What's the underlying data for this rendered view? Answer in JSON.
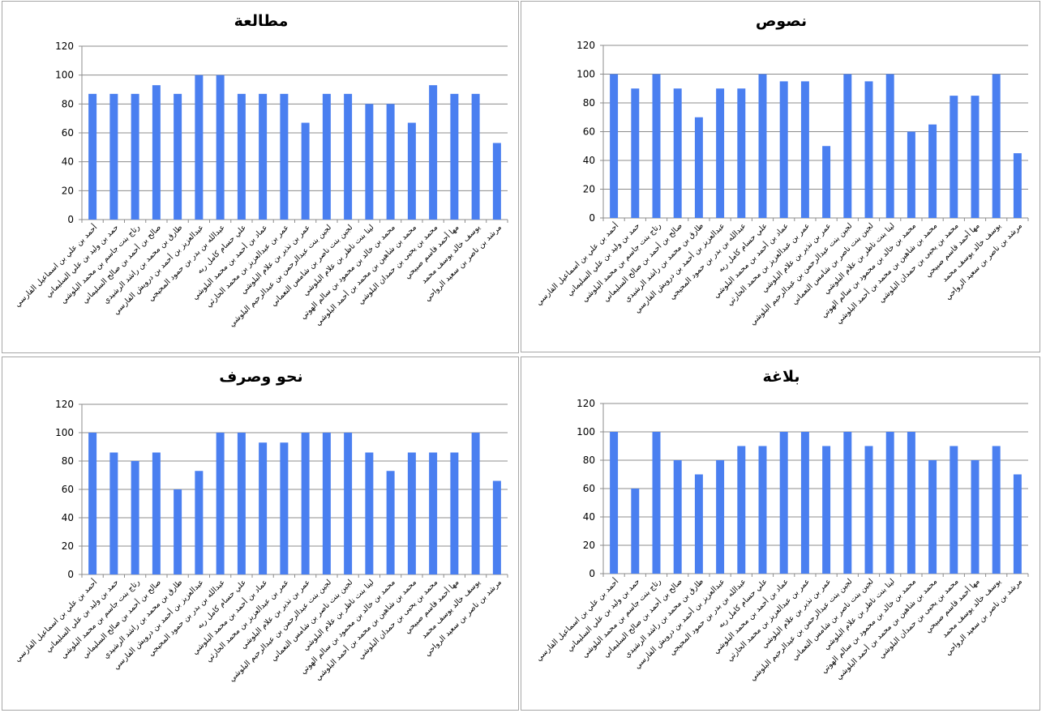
{
  "colors": {
    "bar": "#4a7ff0",
    "grid": "#8c8c8c",
    "axis": "#8c8c8c"
  },
  "chart_data": [
    {
      "type": "bar",
      "title": "مطالعة",
      "ylim": [
        0,
        120
      ],
      "yticks": [
        0,
        20,
        40,
        60,
        80,
        100,
        120
      ],
      "grid": true,
      "categories": [
        "أحمد بن علي بن اسماعيل الفارسي",
        "حمد بن وليد بن علي السليماني",
        "رتاج بنت جاسم بن محمد البلوشي",
        "صالح بن أحمد بن صالح السليماني",
        "طارق بن محمد بن راشد الرشيدي",
        "عبدالعزيز بن أحمد بن درويش الفارسي",
        "عبدالله بن بدر بن حمود المحيجي",
        "علي حسام كامل ربه",
        "عماد بن أحمد بن محمد البلوشي",
        "عمر بن عبدالعزيز بن محمد الحارثي",
        "عمر بن نذير بن علام البلوشي",
        "لجين بنت عبدالرحمن بن عبدالرحيم البلوشي",
        "لجين بنت ناصر بن شامس النعماني",
        "لينا بنت ناظر بن علام البلوشي",
        "محمد بن خالد بن محمود بن سالم الهوتي",
        "محمد بن شاهين بن محمد بن أحمد البلوشي",
        "محمد بن يحيى بن حمدان البلوشي",
        "مها أحمد قاسم صبيحي",
        "يوسف خالد يوسف محمد",
        "مرشد بن ناصر بن سعيد الرواحي"
      ],
      "values": [
        87,
        87,
        87,
        93,
        87,
        100,
        100,
        87,
        87,
        87,
        67,
        87,
        87,
        80,
        80,
        67,
        93,
        87,
        87,
        53
      ]
    },
    {
      "type": "bar",
      "title": "نصوص",
      "ylim": [
        0,
        120
      ],
      "yticks": [
        0,
        20,
        40,
        60,
        80,
        100,
        120
      ],
      "grid": true,
      "categories": [
        "أحمد بن علي بن اسماعيل الفارسي",
        "حمد بن وليد بن علي السليماني",
        "رتاج بنت جاسم بن محمد البلوشي",
        "صالح بن أحمد بن صالح السليماني",
        "طارق بن محمد بن راشد الرشيدي",
        "عبدالعزيز بن أحمد بن درويش الفارسي",
        "عبدالله بن بدر بن حمود المحيجي",
        "علي حسام كامل ربه",
        "عماد بن أحمد بن محمد البلوشي",
        "عمر بن عبدالعزيز بن محمد الحارثي",
        "عمر بن نذير بن علام البلوشي",
        "لجين بنت عبدالرحمن بن عبدالرحيم البلوشي",
        "لجين بنت ناصر بن شامس النعماني",
        "لينا بنت ناظر بن علام البلوشي",
        "محمد بن خالد بن محمود بن سالم الهوتي",
        "محمد بن شاهين بن محمد بن أحمد البلوشي",
        "محمد بن يحيى بن حمدان البلوشي",
        "مها أحمد قاسم صبيحي",
        "يوسف خالد يوسف محمد",
        "مرشد بن ناصر بن سعيد الرواحي"
      ],
      "values": [
        100,
        90,
        100,
        90,
        70,
        90,
        90,
        100,
        95,
        95,
        50,
        100,
        95,
        100,
        60,
        65,
        85,
        85,
        100,
        45
      ]
    },
    {
      "type": "bar",
      "title": "نحو وصرف",
      "ylim": [
        0,
        120
      ],
      "yticks": [
        0,
        20,
        40,
        60,
        80,
        100,
        120
      ],
      "grid": true,
      "categories": [
        "أحمد بن علي بن اسماعيل الفارسي",
        "حمد بن وليد بن علي السليماني",
        "رتاج بنت جاسم بن محمد البلوشي",
        "صالح بن أحمد بن صالح السليماني",
        "طارق بن محمد بن راشد الرشيدي",
        "عبدالعزيز بن أحمد بن درويش الفارسي",
        "عبدالله بن بدر بن حمود المحيجي",
        "علي حسام كامل ربه",
        "عماد بن أحمد بن محمد البلوشي",
        "عمر بن عبدالعزيز بن محمد الحارثي",
        "عمر بن نذير بن علام البلوشي",
        "لجين بنت عبدالرحمن بن عبدالرحيم البلوشي",
        "لجين بنت ناصر بن شامس النعماني",
        "لينا بنت ناظر بن علام البلوشي",
        "محمد بن خالد بن محمود بن سالم الهوتي",
        "محمد بن شاهين بن محمد بن أحمد البلوشي",
        "محمد بن يحيى بن حمدان البلوشي",
        "مها أحمد قاسم صبيحي",
        "يوسف خالد يوسف محمد",
        "مرشد بن ناصر بن سعيد الرواحي"
      ],
      "values": [
        100,
        86,
        80,
        86,
        60,
        73,
        100,
        100,
        93,
        93,
        100,
        100,
        100,
        86,
        73,
        86,
        86,
        86,
        100,
        66
      ]
    },
    {
      "type": "bar",
      "title": "بلاغة",
      "ylim": [
        0,
        120
      ],
      "yticks": [
        0,
        20,
        40,
        60,
        80,
        100,
        120
      ],
      "grid": true,
      "categories": [
        "أحمد بن علي بن اسماعيل الفارسي",
        "حمد بن وليد بن علي السليماني",
        "رتاج بنت جاسم بن محمد البلوشي",
        "صالح بن أحمد بن صالح السليماني",
        "طارق بن محمد بن راشد الرشيدي",
        "عبدالعزيز بن أحمد بن درويش الفارسي",
        "عبدالله بن بدر بن حمود المحيجي",
        "علي حسام كامل ربه",
        "عماد بن أحمد بن محمد البلوشي",
        "عمر بن عبدالعزيز بن محمد الحارثي",
        "عمر بن نذير بن علام البلوشي",
        "لجين بنت عبدالرحمن بن عبدالرحيم البلوشي",
        "لجين بنت ناصر بن شامس النعماني",
        "لينا بنت ناظر بن علام البلوشي",
        "محمد بن خالد بن محمود بن سالم الهوتي",
        "محمد بن شاهين بن محمد بن أحمد البلوشي",
        "محمد بن يحيى بن حمدان البلوشي",
        "مها أحمد قاسم صبيحي",
        "يوسف خالد يوسف محمد",
        "مرشد بن ناصر بن سعيد الرواحي"
      ],
      "values": [
        100,
        60,
        100,
        80,
        70,
        80,
        90,
        90,
        100,
        100,
        90,
        100,
        90,
        100,
        100,
        80,
        90,
        80,
        90,
        70
      ]
    }
  ]
}
